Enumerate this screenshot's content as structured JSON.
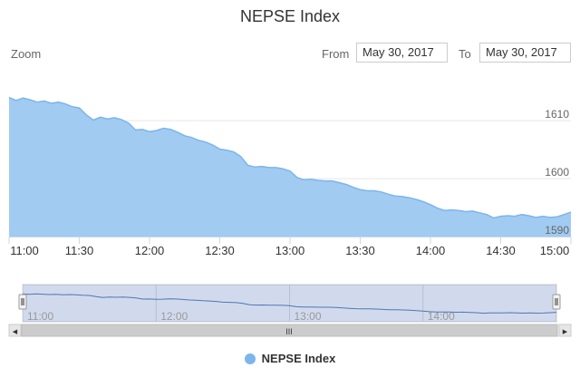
{
  "title": "NEPSE Index",
  "zoom_label": "Zoom",
  "range": {
    "from_label": "From",
    "from_value": "May 30, 2017",
    "to_label": "To",
    "to_value": "May 30, 2017"
  },
  "navigator": {
    "scrollbar_grip": "III",
    "left_arrow": "◀",
    "right_arrow": "▶"
  },
  "colors": {
    "series": "#7cb5ec",
    "area_fill": "#9cc8f0",
    "navigator_line": "#4572a7",
    "navigator_mask": "#e6ebf5",
    "grid": "#e6e6e6"
  },
  "chart_data": {
    "type": "area",
    "title": "NEPSE Index",
    "date": "May 30, 2017",
    "xlim": [
      "11:00",
      "15:00"
    ],
    "ylim": [
      1590,
      1618
    ],
    "x_ticks": [
      "11:00",
      "11:30",
      "12:00",
      "12:30",
      "13:00",
      "13:30",
      "14:00",
      "14:30",
      "15:00"
    ],
    "y_ticks": [
      1590,
      1600,
      1610
    ],
    "navigator_ticks": [
      "11:00",
      "12:00",
      "13:00",
      "14:00"
    ],
    "legend": [
      "NEPSE Index"
    ],
    "series": [
      {
        "name": "NEPSE Index",
        "points": [
          [
            "11:00",
            1614.0
          ],
          [
            "11:03",
            1613.5
          ],
          [
            "11:06",
            1613.9
          ],
          [
            "11:09",
            1613.6
          ],
          [
            "11:12",
            1613.2
          ],
          [
            "11:15",
            1613.4
          ],
          [
            "11:18",
            1613.0
          ],
          [
            "11:21",
            1613.2
          ],
          [
            "11:24",
            1612.9
          ],
          [
            "11:27",
            1612.4
          ],
          [
            "11:30",
            1612.2
          ],
          [
            "11:33",
            1611.0
          ],
          [
            "11:36",
            1610.1
          ],
          [
            "11:39",
            1610.6
          ],
          [
            "11:42",
            1610.3
          ],
          [
            "11:45",
            1610.5
          ],
          [
            "11:48",
            1610.2
          ],
          [
            "11:51",
            1609.6
          ],
          [
            "11:54",
            1608.4
          ],
          [
            "11:57",
            1608.5
          ],
          [
            "12:00",
            1608.1
          ],
          [
            "12:03",
            1608.3
          ],
          [
            "12:06",
            1608.7
          ],
          [
            "12:09",
            1608.5
          ],
          [
            "12:12",
            1608.0
          ],
          [
            "12:15",
            1607.4
          ],
          [
            "12:18",
            1607.1
          ],
          [
            "12:21",
            1606.6
          ],
          [
            "12:24",
            1606.3
          ],
          [
            "12:27",
            1605.8
          ],
          [
            "12:30",
            1605.1
          ],
          [
            "12:33",
            1604.9
          ],
          [
            "12:36",
            1604.6
          ],
          [
            "12:39",
            1603.8
          ],
          [
            "12:42",
            1602.3
          ],
          [
            "12:45",
            1602.0
          ],
          [
            "12:48",
            1602.1
          ],
          [
            "12:51",
            1601.9
          ],
          [
            "12:54",
            1601.9
          ],
          [
            "12:57",
            1601.7
          ],
          [
            "13:00",
            1601.3
          ],
          [
            "13:03",
            1600.2
          ],
          [
            "13:06",
            1599.8
          ],
          [
            "13:09",
            1599.9
          ],
          [
            "13:12",
            1599.7
          ],
          [
            "13:15",
            1599.6
          ],
          [
            "13:18",
            1599.6
          ],
          [
            "13:21",
            1599.3
          ],
          [
            "13:24",
            1599.0
          ],
          [
            "13:27",
            1598.5
          ],
          [
            "13:30",
            1598.1
          ],
          [
            "13:33",
            1597.9
          ],
          [
            "13:36",
            1597.9
          ],
          [
            "13:39",
            1597.7
          ],
          [
            "13:42",
            1597.3
          ],
          [
            "13:45",
            1597.0
          ],
          [
            "13:48",
            1596.9
          ],
          [
            "13:51",
            1596.7
          ],
          [
            "13:54",
            1596.4
          ],
          [
            "13:57",
            1596.0
          ],
          [
            "14:00",
            1595.5
          ],
          [
            "14:03",
            1594.9
          ],
          [
            "14:06",
            1594.5
          ],
          [
            "14:09",
            1594.6
          ],
          [
            "14:12",
            1594.5
          ],
          [
            "14:15",
            1594.3
          ],
          [
            "14:18",
            1594.4
          ],
          [
            "14:21",
            1594.1
          ],
          [
            "14:24",
            1593.8
          ],
          [
            "14:27",
            1593.2
          ],
          [
            "14:30",
            1593.5
          ],
          [
            "14:33",
            1593.6
          ],
          [
            "14:36",
            1593.5
          ],
          [
            "14:39",
            1593.8
          ],
          [
            "14:42",
            1593.6
          ],
          [
            "14:45",
            1593.3
          ],
          [
            "14:48",
            1593.5
          ],
          [
            "14:51",
            1593.3
          ],
          [
            "14:54",
            1593.4
          ],
          [
            "14:57",
            1593.8
          ],
          [
            "15:00",
            1594.2
          ]
        ]
      }
    ]
  }
}
